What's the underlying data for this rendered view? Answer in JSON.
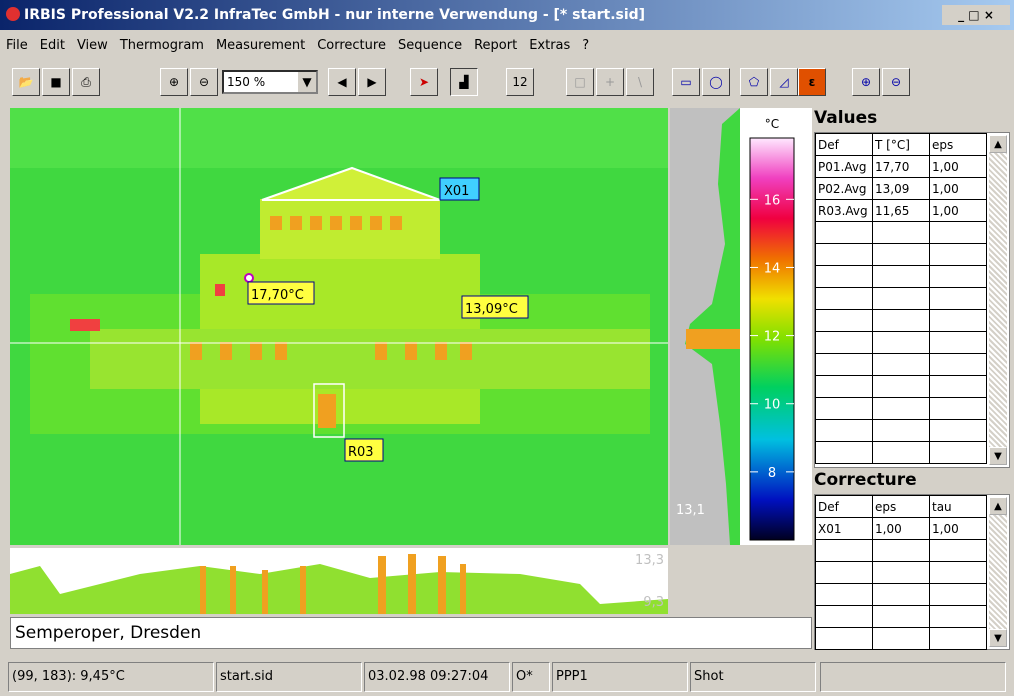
{
  "title": "IRBIS Professional V2.2  InfraTec GmbH - nur interne Verwendung - [* start.sid]",
  "menu": [
    "File",
    "Edit",
    "View",
    "Thermogram",
    "Measurement",
    "Correcture",
    "Sequence",
    "Report",
    "Extras",
    "?"
  ],
  "toolbar": {
    "zoom": "150 %",
    "frame": "12"
  },
  "thermogram": {
    "markers": [
      "X01",
      "17,70°C",
      "13,09°C",
      "R03"
    ],
    "vertical_profile_label": "13,1",
    "horizontal_profile_labels": [
      "13,3",
      "9,3"
    ]
  },
  "colorbar": {
    "unit": "°C",
    "lim": [
      6,
      17.8
    ],
    "ticks": [
      8,
      10,
      12,
      14,
      16
    ]
  },
  "values_panel": {
    "title": "Values",
    "header": [
      "Def",
      "T [°C]",
      "eps"
    ],
    "rows": [
      [
        "P01.Avg",
        "17,70",
        "1,00"
      ],
      [
        "P02.Avg",
        "13,09",
        "1,00"
      ],
      [
        "R03.Avg",
        "11,65",
        "1,00"
      ]
    ]
  },
  "correcture_panel": {
    "title": "Correcture",
    "header": [
      "Def",
      "eps",
      "tau"
    ],
    "rows": [
      [
        "X01",
        "1,00",
        "1,00"
      ]
    ]
  },
  "caption": "Semperoper, Dresden",
  "status": [
    "(99, 183): 9,45°C",
    "start.sid",
    "03.02.98 09:27:04",
    "O*",
    "PPP1",
    "Shot"
  ]
}
